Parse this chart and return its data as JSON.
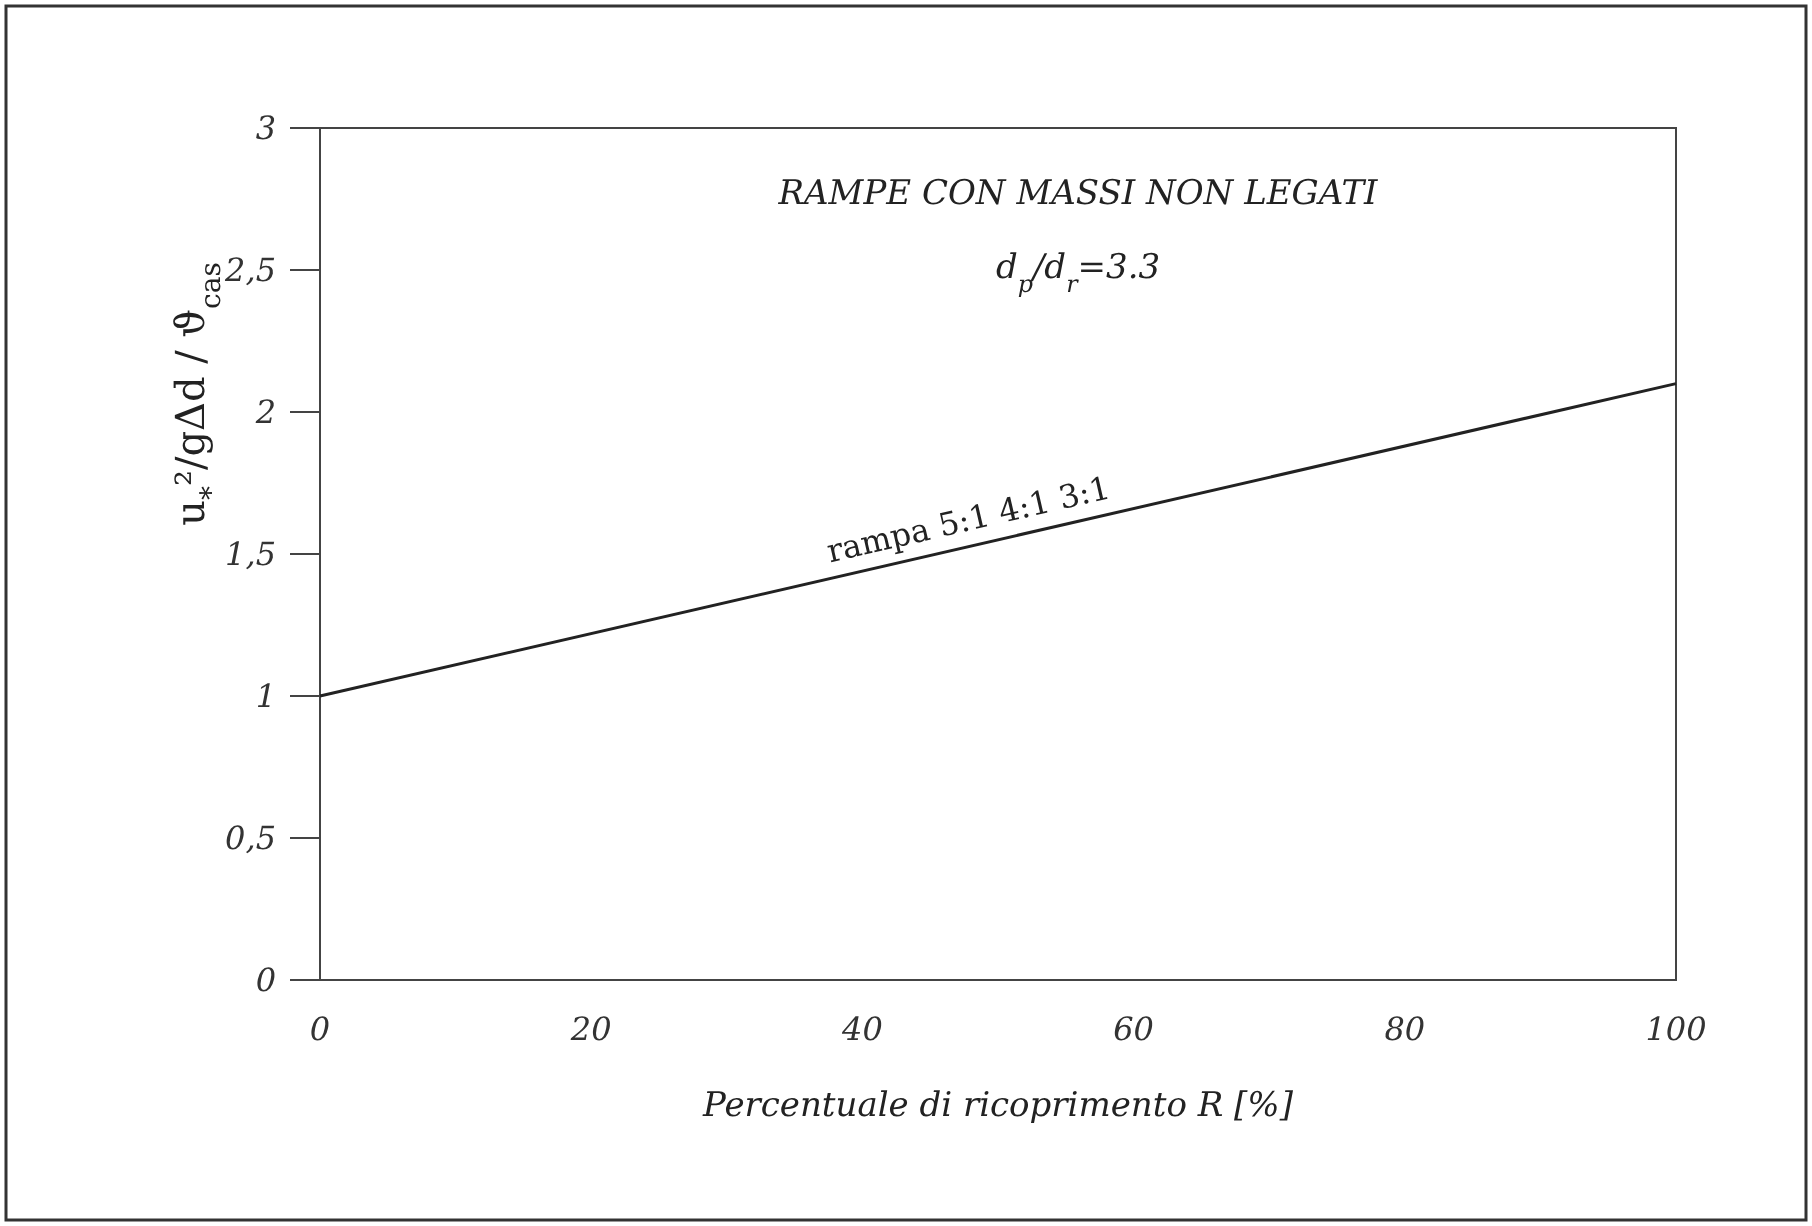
{
  "chart_data": {
    "type": "line",
    "title": "RAMPE CON MASSI NON LEGATI",
    "xlabel": "Percentuale di ricoprimento R [%]",
    "ylabel": "u$_{*}$²/gΔd / ϑ$_{cas}$",
    "x": [
      0,
      100
    ],
    "series": [
      {
        "color": "#222222",
        "values": [
          1,
          2.1
        ]
      }
    ],
    "xlim": [
      0,
      100
    ],
    "xticks": [
      0,
      20,
      40,
      60,
      80,
      100
    ],
    "ylim": [
      0,
      3
    ],
    "yticks": [
      0,
      {
        "value": 0.5,
        "label": "0,5"
      },
      1,
      {
        "value": 1.5,
        "label": "1,5"
      },
      2,
      {
        "value": 2.5,
        "label": "2,5"
      },
      3
    ],
    "annotations": [
      "d$_{p}$/d$_{r}$=3.3",
      "rampa 5:1 4:1 3:1"
    ],
    "grid": false,
    "marker": "none",
    "line_style": "solid"
  }
}
